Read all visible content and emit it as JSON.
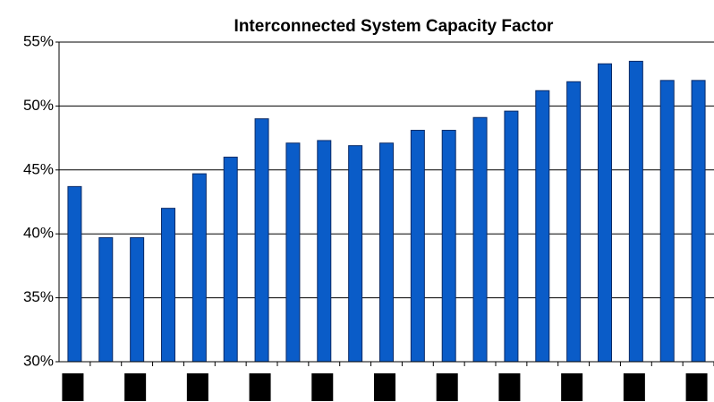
{
  "chart_data": {
    "type": "bar",
    "title": "Interconnected System Capacity Factor",
    "categories": [
      null,
      null,
      null,
      null,
      null,
      null,
      null,
      null,
      null,
      null,
      null,
      null,
      null,
      null,
      null,
      null,
      null,
      null,
      null,
      null,
      null
    ],
    "values": [
      43.7,
      39.7,
      39.7,
      42.0,
      44.7,
      46.0,
      49.0,
      47.1,
      47.3,
      46.9,
      47.1,
      48.1,
      48.1,
      49.1,
      49.6,
      51.2,
      51.9,
      53.3,
      53.5,
      52.0,
      52.0
    ],
    "color": "#0a5cc8",
    "ylim": [
      30,
      55
    ],
    "yticks": [
      {
        "value": 30,
        "label": "30%"
      },
      {
        "value": 35,
        "label": "35%"
      },
      {
        "value": 40,
        "label": "40%"
      },
      {
        "value": 45,
        "label": "45%"
      },
      {
        "value": 50,
        "label": "50%"
      },
      {
        "value": 55,
        "label": "55%"
      }
    ],
    "grid": true
  }
}
